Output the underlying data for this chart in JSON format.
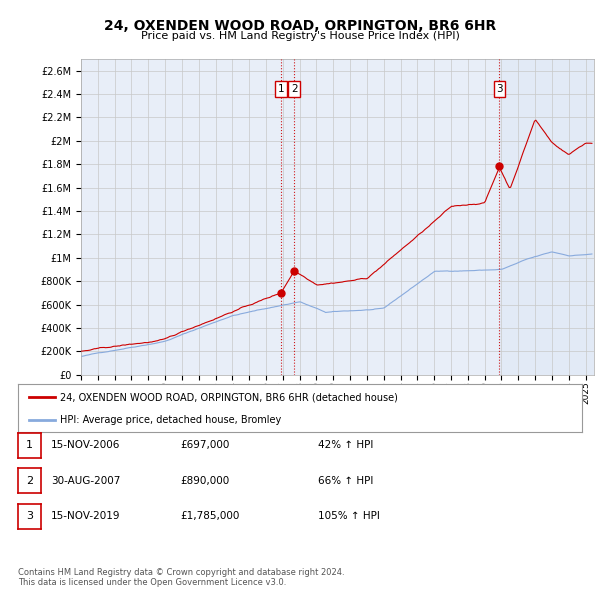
{
  "title": "24, OXENDEN WOOD ROAD, ORPINGTON, BR6 6HR",
  "subtitle": "Price paid vs. HM Land Registry's House Price Index (HPI)",
  "background_color": "#ffffff",
  "plot_bg_color": "#e8eef8",
  "grid_color": "#c8c8c8",
  "ylim": [
    0,
    2700000
  ],
  "yticks": [
    0,
    200000,
    400000,
    600000,
    800000,
    1000000,
    1200000,
    1400000,
    1600000,
    1800000,
    2000000,
    2200000,
    2400000,
    2600000
  ],
  "ytick_labels": [
    "£0",
    "£200K",
    "£400K",
    "£600K",
    "£800K",
    "£1M",
    "£1.2M",
    "£1.4M",
    "£1.6M",
    "£1.8M",
    "£2M",
    "£2.2M",
    "£2.4M",
    "£2.6M"
  ],
  "xlim_start": 1995.0,
  "xlim_end": 2025.5,
  "sale1_x": 2006.88,
  "sale1_y": 697000,
  "sale2_x": 2007.67,
  "sale2_y": 890000,
  "sale3_x": 2019.88,
  "sale3_y": 1785000,
  "sale_color": "#cc0000",
  "hpi_color": "#88aadd",
  "shade_color": "#dde8f5",
  "legend_label_red": "24, OXENDEN WOOD ROAD, ORPINGTON, BR6 6HR (detached house)",
  "legend_label_blue": "HPI: Average price, detached house, Bromley",
  "table_entries": [
    {
      "num": 1,
      "date": "15-NOV-2006",
      "price": "£697,000",
      "hpi": "42% ↑ HPI"
    },
    {
      "num": 2,
      "date": "30-AUG-2007",
      "price": "£890,000",
      "hpi": "66% ↑ HPI"
    },
    {
      "num": 3,
      "date": "15-NOV-2019",
      "price": "£1,785,000",
      "hpi": "105% ↑ HPI"
    }
  ],
  "footnote": "Contains HM Land Registry data © Crown copyright and database right 2024.\nThis data is licensed under the Open Government Licence v3.0."
}
